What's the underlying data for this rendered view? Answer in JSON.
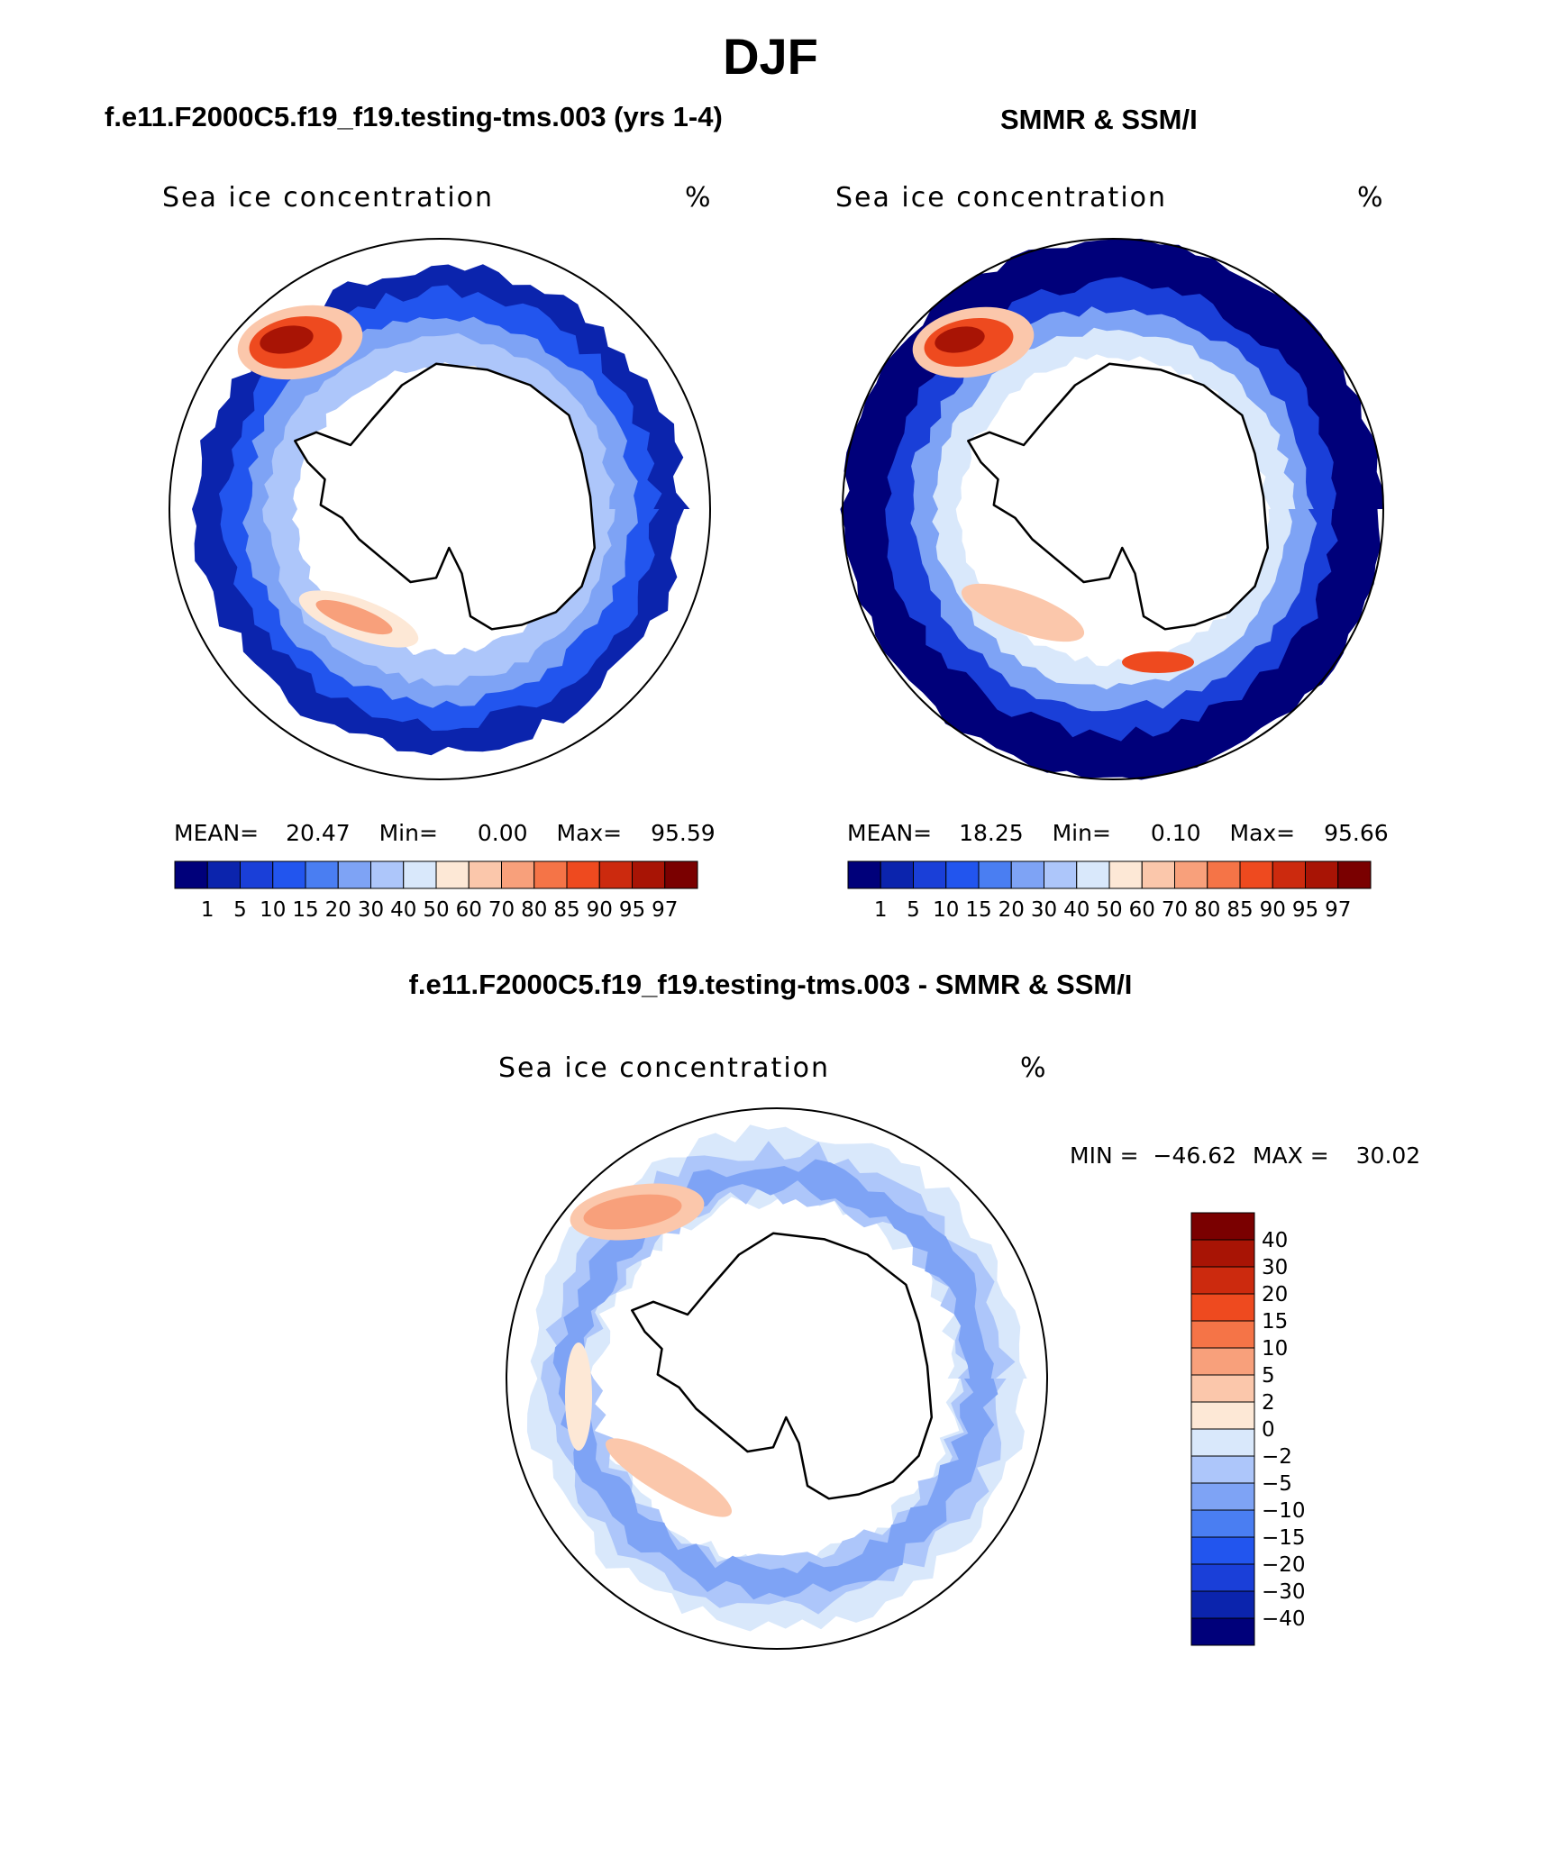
{
  "figure": {
    "season": "DJF",
    "left_title": "f.e11.F2000C5.f19_f19.testing-tms.003 (yrs 1-4)",
    "right_title": "SMMR & SSM/I",
    "diff_title": "f.e11.F2000C5.f19_f19.testing-tms.003 - SMMR & SSM/I"
  },
  "chart_data": [
    {
      "type": "heatmap",
      "projection": "south polar stereographic",
      "variable_label": "Sea ice concentration",
      "units": "%",
      "stats": {
        "mean_label": "MEAN=",
        "mean": "20.47",
        "min_label": "Min=",
        "min": "0.00",
        "max_label": "Max=",
        "max": "95.59"
      },
      "levels": [
        "1",
        "5",
        "10",
        "15",
        "20",
        "30",
        "40",
        "50",
        "60",
        "70",
        "80",
        "85",
        "90",
        "95",
        "97"
      ],
      "colors": [
        "#00007a",
        "#0b24ad",
        "#1a3fd8",
        "#2255ee",
        "#4a7ef2",
        "#7ea3f5",
        "#adc6fa",
        "#d9e8fb",
        "#fde8d6",
        "#fbc7ab",
        "#f8a07b",
        "#f57447",
        "#ee4a1f",
        "#cc2a0e",
        "#a81405",
        "#7a0000"
      ]
    },
    {
      "type": "heatmap",
      "projection": "south polar stereographic",
      "variable_label": "Sea ice concentration",
      "units": "%",
      "stats": {
        "mean_label": "MEAN=",
        "mean": "18.25",
        "min_label": "Min=",
        "min": "0.10",
        "max_label": "Max=",
        "max": "95.66"
      },
      "levels": [
        "1",
        "5",
        "10",
        "15",
        "20",
        "30",
        "40",
        "50",
        "60",
        "70",
        "80",
        "85",
        "90",
        "95",
        "97"
      ],
      "colors": [
        "#00007a",
        "#0b24ad",
        "#1a3fd8",
        "#2255ee",
        "#4a7ef2",
        "#7ea3f5",
        "#adc6fa",
        "#d9e8fb",
        "#fde8d6",
        "#fbc7ab",
        "#f8a07b",
        "#f57447",
        "#ee4a1f",
        "#cc2a0e",
        "#a81405",
        "#7a0000"
      ]
    },
    {
      "type": "heatmap",
      "projection": "south polar stereographic",
      "variable_label": "Sea ice concentration",
      "units": "%",
      "stats": {
        "min_label": "MIN =",
        "min": "−46.62",
        "max_label": "MAX =",
        "max": "30.02"
      },
      "levels": [
        "−40",
        "−30",
        "−20",
        "−15",
        "−10",
        "−5",
        "−2",
        "0",
        "2",
        "5",
        "10",
        "15",
        "20",
        "30",
        "40"
      ],
      "colors": [
        "#00007a",
        "#0b24ad",
        "#1a3fd8",
        "#2255ee",
        "#4a7ef2",
        "#7ea3f5",
        "#adc6fa",
        "#d9e8fb",
        "#fde8d6",
        "#fbc7ab",
        "#f8a07b",
        "#f57447",
        "#ee4a1f",
        "#cc2a0e",
        "#a81405",
        "#7a0000"
      ]
    }
  ]
}
